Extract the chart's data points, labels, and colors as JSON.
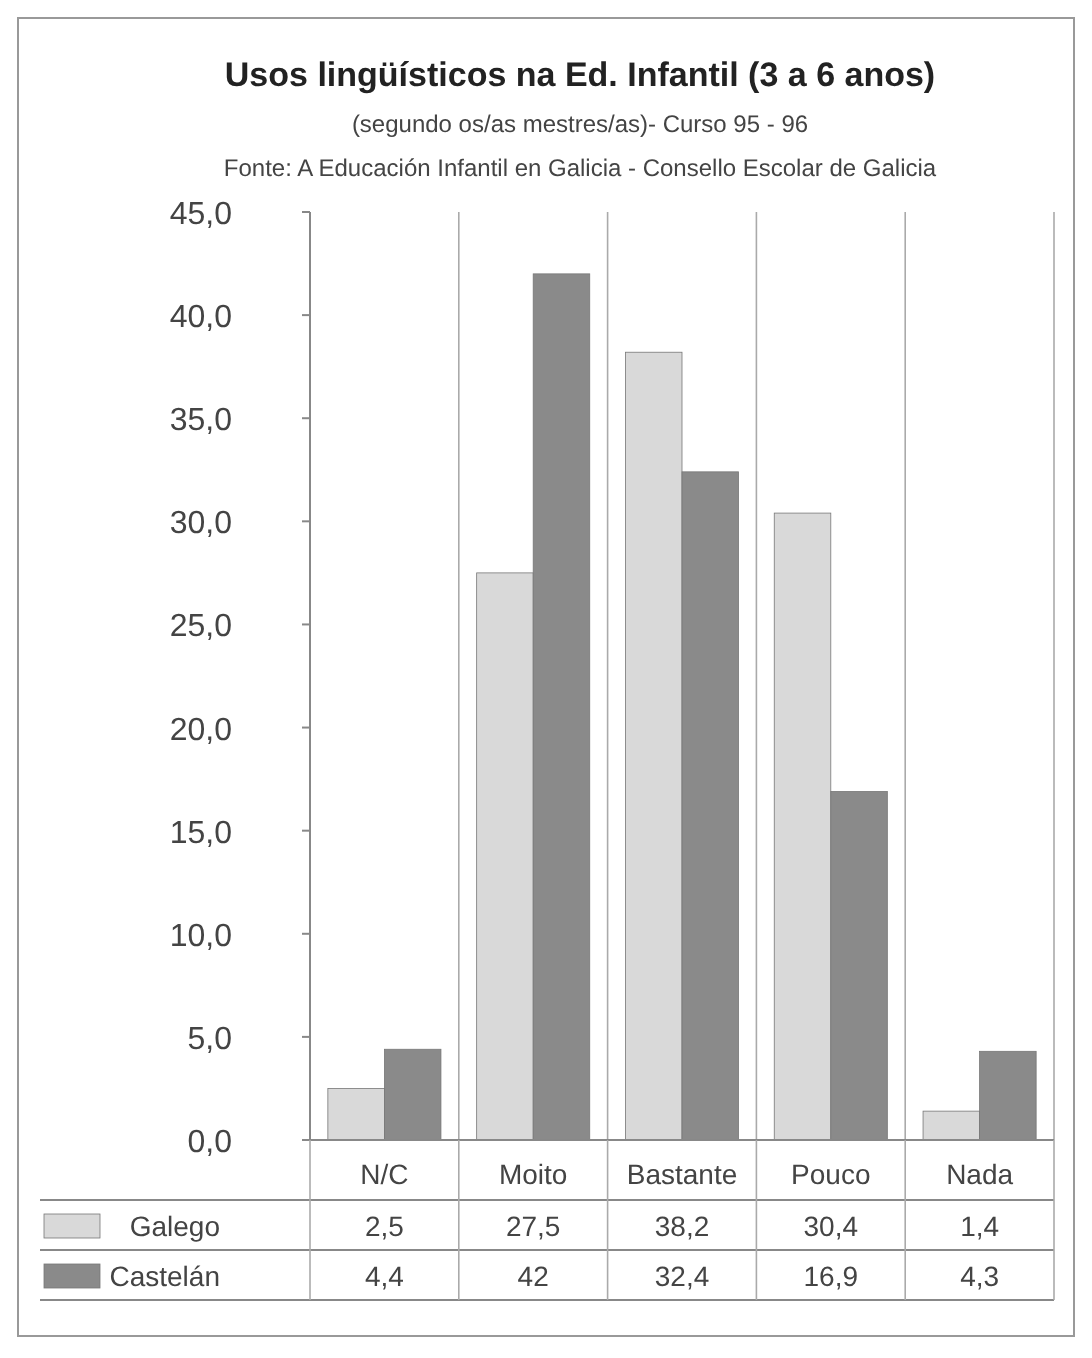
{
  "chart_data": {
    "type": "bar",
    "title": "Usos lingüísticos na Ed. Infantil (3 a 6 anos)",
    "subtitle": "(segundo os/as mestres/as)- Curso 95 - 96",
    "annotations": [
      "Fonte: A Educación Infantil en Galicia - Consello Escolar de Galicia"
    ],
    "categories": [
      "N/C",
      "Moito",
      "Bastante",
      "Pouco",
      "Nada"
    ],
    "series": [
      {
        "name": "Galego",
        "color": "#d9d9d9",
        "values": [
          2.5,
          27.5,
          38.2,
          30.4,
          1.4
        ],
        "value_labels": [
          "2,5",
          "27,5",
          "38,2",
          "30,4",
          "1,4"
        ]
      },
      {
        "name": "Castelán",
        "color": "#8a8a8a",
        "values": [
          4.4,
          42,
          32.4,
          16.9,
          4.3
        ],
        "value_labels": [
          "4,4",
          "42",
          "32,4",
          "16,9",
          "4,3"
        ]
      }
    ],
    "ylim": [
      0,
      45
    ],
    "yticks": [
      {
        "value": 0,
        "label": "0,0"
      },
      {
        "value": 5,
        "label": "5,0"
      },
      {
        "value": 10,
        "label": "10,0"
      },
      {
        "value": 15,
        "label": "15,0"
      },
      {
        "value": 20,
        "label": "20,0"
      },
      {
        "value": 25,
        "label": "25,0"
      },
      {
        "value": 30,
        "label": "30,0"
      },
      {
        "value": 35,
        "label": "35,0"
      },
      {
        "value": 40,
        "label": "40,0"
      },
      {
        "value": 45,
        "label": "45,0"
      }
    ],
    "grid": "x",
    "legend": "bottom"
  }
}
